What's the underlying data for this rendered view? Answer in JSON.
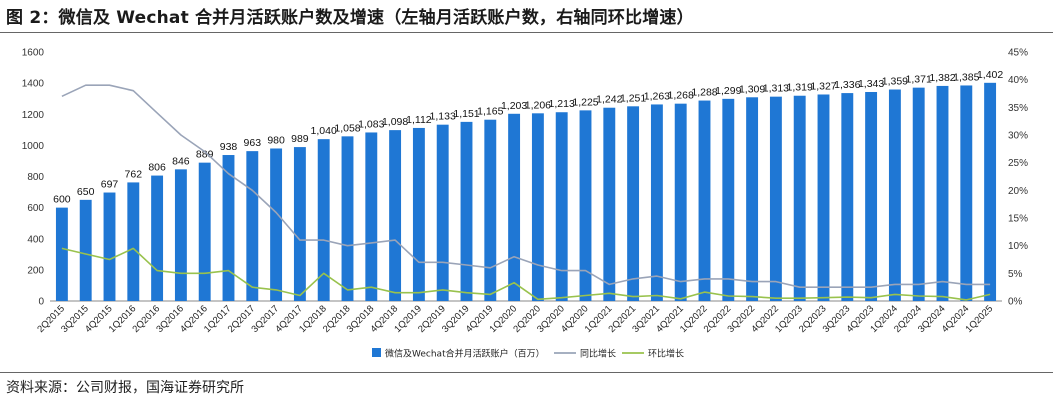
{
  "header": {
    "title": "图 2：微信及 Wechat 合并月活跃账户数及增速（左轴月活跃账户数，右轴同环比增速）"
  },
  "footer": {
    "source": "资料来源：公司财报，国海证券研究所"
  },
  "colors": {
    "bar": "#1f77d4",
    "yoy": "#9aa4b8",
    "qoq": "#99c24d",
    "axis": "#888888"
  },
  "chart_data": {
    "type": "bar",
    "title": "微信及 Wechat 合并月活跃账户数及增速",
    "categories": [
      "2Q2015",
      "3Q2015",
      "4Q2015",
      "1Q2016",
      "2Q2016",
      "3Q2016",
      "4Q2016",
      "1Q2017",
      "2Q2017",
      "3Q2017",
      "4Q2017",
      "1Q2018",
      "2Q2018",
      "3Q2018",
      "4Q2018",
      "1Q2019",
      "2Q2019",
      "3Q2019",
      "4Q2019",
      "1Q2020",
      "2Q2020",
      "3Q2020",
      "4Q2020",
      "1Q2021",
      "2Q2021",
      "3Q2021",
      "4Q2021",
      "1Q2022",
      "2Q2022",
      "3Q2022",
      "4Q2022",
      "1Q2023",
      "2Q2023",
      "3Q2023",
      "4Q2023",
      "1Q2024",
      "2Q2024",
      "3Q2024",
      "4Q2024",
      "1Q2025"
    ],
    "series": [
      {
        "name": "微信及Wechat合并月活跃账户（百万）",
        "axis": "left",
        "kind": "bar",
        "values": [
          600,
          650,
          697,
          762,
          806,
          846,
          889,
          938,
          963,
          980,
          989,
          1040,
          1058,
          1083,
          1098,
          1112,
          1133,
          1151,
          1165,
          1203,
          1206,
          1213,
          1225,
          1242,
          1251,
          1263,
          1268,
          1288,
          1299,
          1309,
          1313,
          1319,
          1327,
          1336,
          1343,
          1359,
          1371,
          1382,
          1385,
          1402
        ]
      },
      {
        "name": "同比增长",
        "axis": "right",
        "kind": "line",
        "values": [
          0.37,
          0.39,
          0.39,
          0.38,
          0.34,
          0.3,
          0.27,
          0.23,
          0.2,
          0.16,
          0.11,
          0.11,
          0.1,
          0.105,
          0.11,
          0.07,
          0.07,
          0.065,
          0.06,
          0.08,
          0.065,
          0.055,
          0.055,
          0.03,
          0.04,
          0.045,
          0.035,
          0.04,
          0.04,
          0.035,
          0.035,
          0.025,
          0.025,
          0.025,
          0.025,
          0.03,
          0.03,
          0.035,
          0.03,
          0.03
        ]
      },
      {
        "name": "环比增长",
        "axis": "right",
        "kind": "line",
        "values": [
          0.095,
          0.085,
          0.075,
          0.095,
          0.055,
          0.05,
          0.05,
          0.055,
          0.025,
          0.02,
          0.01,
          0.05,
          0.02,
          0.025,
          0.015,
          0.015,
          0.02,
          0.015,
          0.012,
          0.033,
          0.003,
          0.006,
          0.01,
          0.014,
          0.008,
          0.01,
          0.004,
          0.016,
          0.009,
          0.008,
          0.005,
          0.005,
          0.006,
          0.007,
          0.006,
          0.012,
          0.009,
          0.008,
          0.002,
          0.012
        ]
      }
    ],
    "data_labels": [
      "600",
      "650",
      "697",
      "762",
      "806",
      "846",
      "889",
      "938",
      "963",
      "980",
      "989",
      "1,040",
      "1,058",
      "1,083",
      "1,098",
      "1,112",
      "1,133",
      "1,151",
      "1,165",
      "1,203",
      "1,206",
      "1,213",
      "1,225",
      "1,242",
      "1,251",
      "1,263",
      "1,268",
      "1,288",
      "1,299",
      "1,309",
      "1,313",
      "1,319",
      "1,327",
      "1,336",
      "1,343",
      "1,359",
      "1,371",
      "1,382",
      "1,385",
      "1,402"
    ],
    "left_axis": {
      "min": 0,
      "max": 1600,
      "step": 200,
      "tick_labels": [
        "0",
        "200",
        "400",
        "600",
        "800",
        "1000",
        "1200",
        "1400",
        "1600"
      ]
    },
    "right_axis": {
      "min": 0,
      "max": 0.45,
      "step": 0.05,
      "tick_labels": [
        "0%",
        "5%",
        "10%",
        "15%",
        "20%",
        "25%",
        "30%",
        "35%",
        "40%",
        "45%"
      ]
    },
    "legend": {
      "position": "bottom-center",
      "entries": [
        "微信及Wechat合并月活跃账户（百万）",
        "同比增长",
        "环比增长"
      ]
    },
    "grid": false
  }
}
